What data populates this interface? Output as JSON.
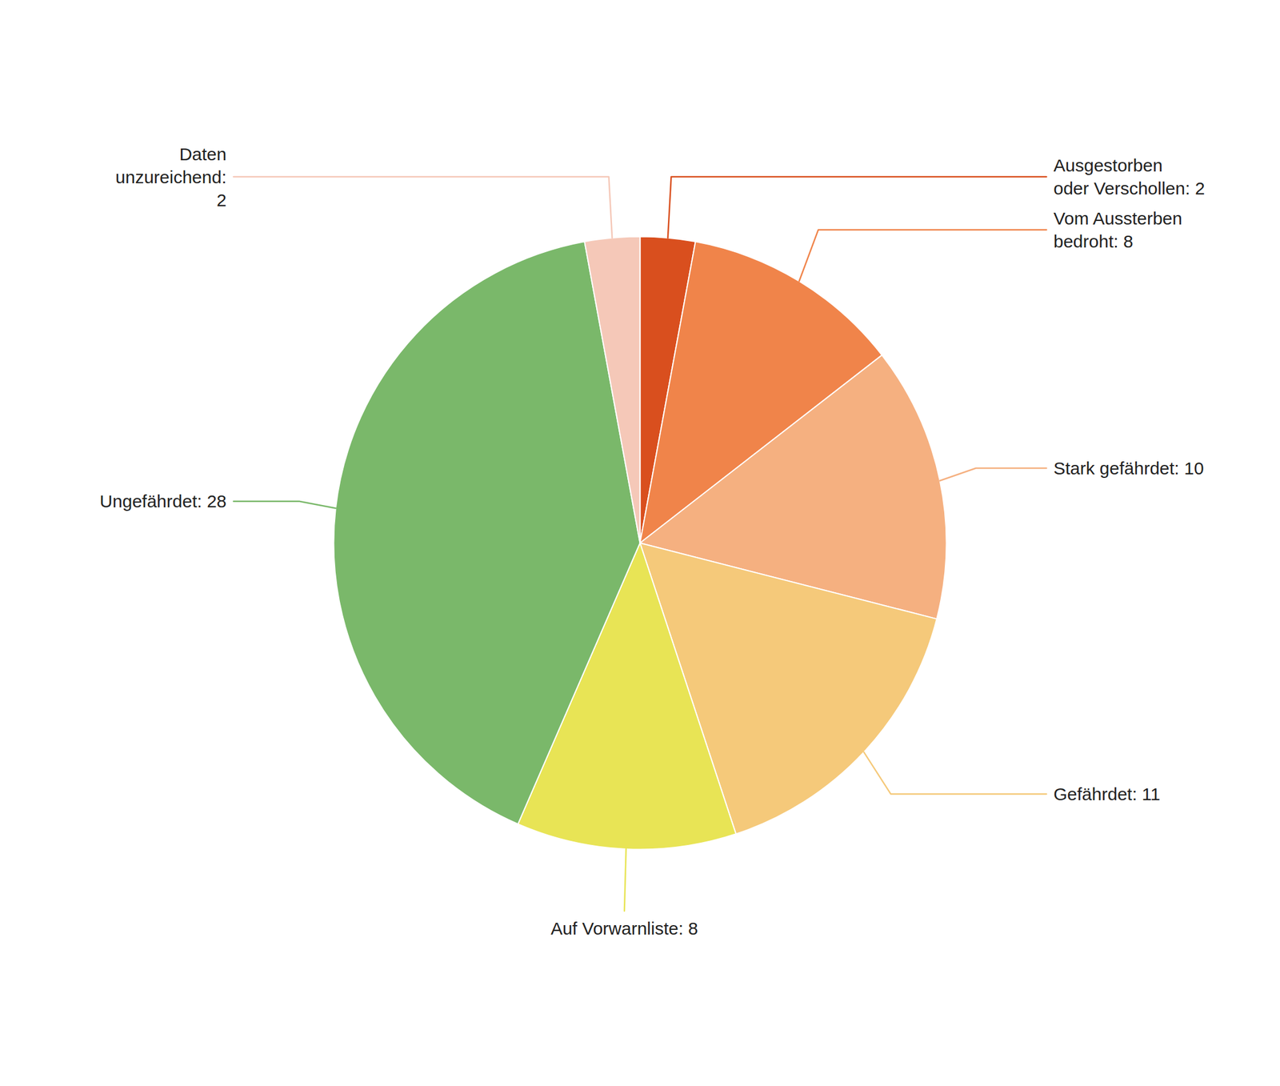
{
  "chart_data": {
    "type": "pie",
    "categories": [
      "Ausgestorben\noder Verschollen: 2",
      "Vom Aussterben\nbedroht: 8",
      "Stark gefährdet: 10",
      "Gefährdet: 11",
      "Auf Vorwarnliste: 8",
      "Ungefährdet: 28",
      "Daten\nunzureichend:\n2"
    ],
    "values": [
      2,
      8,
      10,
      11,
      8,
      28,
      2
    ],
    "colors": [
      "#d94f1e",
      "#f0844a",
      "#f5b080",
      "#f5c97a",
      "#e8e455",
      "#7ab86a",
      "#f5c8b8"
    ]
  }
}
